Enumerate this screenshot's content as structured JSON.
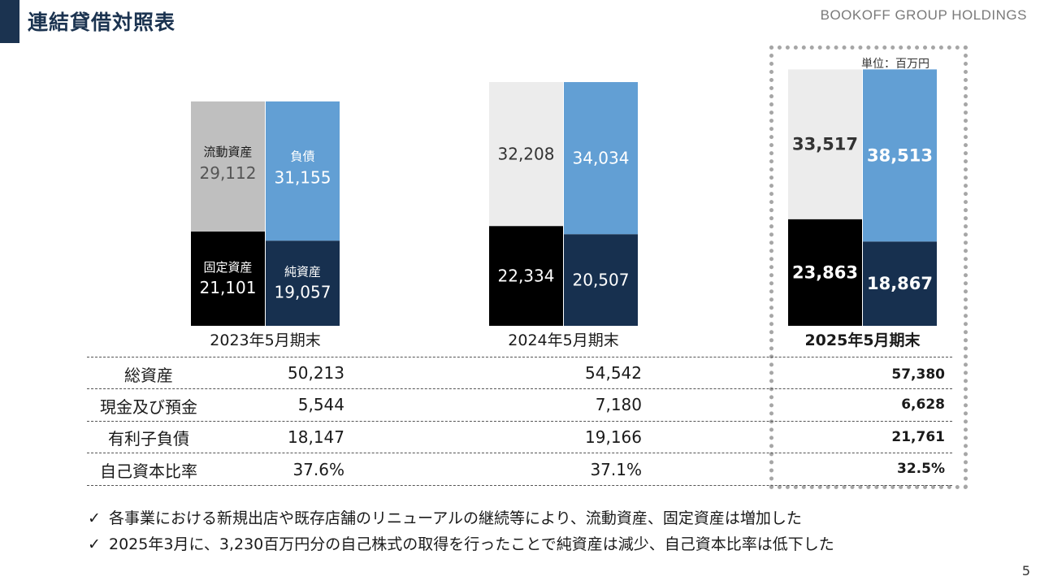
{
  "header": {
    "title": "連結貸借対照表",
    "brand": "BOOKOFF GROUP HOLDINGS",
    "unit": "単位：百万円"
  },
  "chart_data": {
    "type": "bar",
    "categories": [
      "2023年5月期末",
      "2024年5月期末",
      "2025年5月期末"
    ],
    "segment_labels": {
      "current_assets": "流動資産",
      "fixed_assets": "固定資産",
      "liabilities": "負債",
      "net_assets": "純資産"
    },
    "assets": {
      "current_assets": [
        "29,112",
        "32,208",
        "33,517"
      ],
      "fixed_assets": [
        "21,101",
        "22,334",
        "23,863"
      ]
    },
    "liabilities_and_equity": {
      "liabilities": [
        "31,155",
        "34,034",
        "38,513"
      ],
      "net_assets": [
        "19,057",
        "20,507",
        "18,867"
      ]
    },
    "current_assets_values": [
      29112,
      32208,
      33517
    ],
    "fixed_assets_values": [
      21101,
      22334,
      23863
    ],
    "liabilities_values": [
      31155,
      34034,
      38513
    ],
    "net_assets_values": [
      19057,
      20507,
      18867
    ],
    "colors": {
      "current_assets_2023": "#bfbfbf",
      "current_assets": "#ececec",
      "fixed_assets": "#000000",
      "liabilities": "#629fd4",
      "net_assets": "#17304f"
    },
    "highlight_category": "2025年5月期末"
  },
  "table": {
    "rows": [
      {
        "label": "総資産",
        "values": [
          "50,213",
          "54,542",
          "57,380"
        ]
      },
      {
        "label": "現金及び預金",
        "values": [
          "5,544",
          "7,180",
          "6,628"
        ]
      },
      {
        "label": "有利子負債",
        "values": [
          "18,147",
          "19,166",
          "21,761"
        ]
      },
      {
        "label": "自己資本比率",
        "values": [
          "37.6%",
          "37.1%",
          "32.5%"
        ]
      }
    ]
  },
  "notes": [
    "各事業における新規出店や既存店舗のリニューアルの継続等により、流動資産、固定資産は増加した",
    "2025年3月に、3,230百万円分の自己株式の取得を行ったことで純資産は減少、自己資本比率は低下した"
  ],
  "icons": {
    "check": "check-mark-icon"
  },
  "page_number": "5"
}
